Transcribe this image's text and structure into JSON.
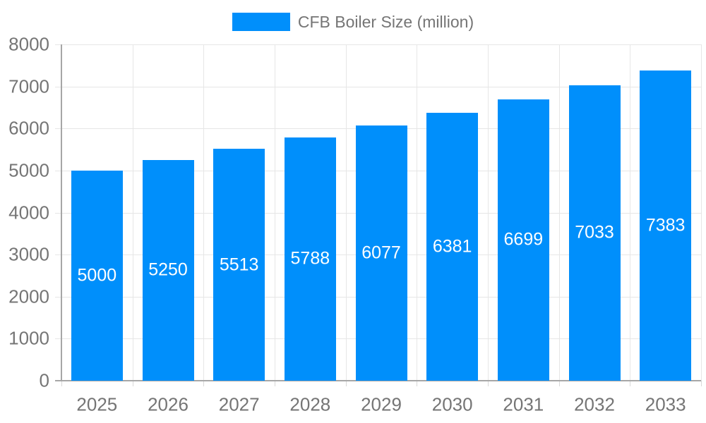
{
  "legend": {
    "label": "CFB Boiler Size (million)"
  },
  "chart_data": {
    "type": "bar",
    "title": "",
    "xlabel": "",
    "ylabel": "",
    "categories": [
      "2025",
      "2026",
      "2027",
      "2028",
      "2029",
      "2030",
      "2031",
      "2032",
      "2033"
    ],
    "series": [
      {
        "name": "CFB Boiler Size (million)",
        "values": [
          5000,
          5250,
          5513,
          5788,
          6077,
          6381,
          6699,
          7033,
          7383
        ]
      }
    ],
    "bar_value_labels": [
      "5000",
      "5250",
      "5513",
      "5788",
      "6077",
      "6381",
      "6699",
      "7033",
      "7383"
    ],
    "ylim": [
      0,
      8000
    ],
    "yticks": [
      0,
      1000,
      2000,
      3000,
      4000,
      5000,
      6000,
      7000,
      8000
    ],
    "grid": "horizontal-and-vertical",
    "legend_position": "top-center",
    "value_label_position": "inside-center"
  },
  "colors": {
    "bar": "#008ffb",
    "bar_label": "#ffffff",
    "axis_label": "#757575",
    "legend_text": "#757575",
    "grid_line": "#e6e6e6",
    "tick_line": "#d9d9d9",
    "axis_line": "#a6a6a6",
    "background": "#ffffff"
  }
}
